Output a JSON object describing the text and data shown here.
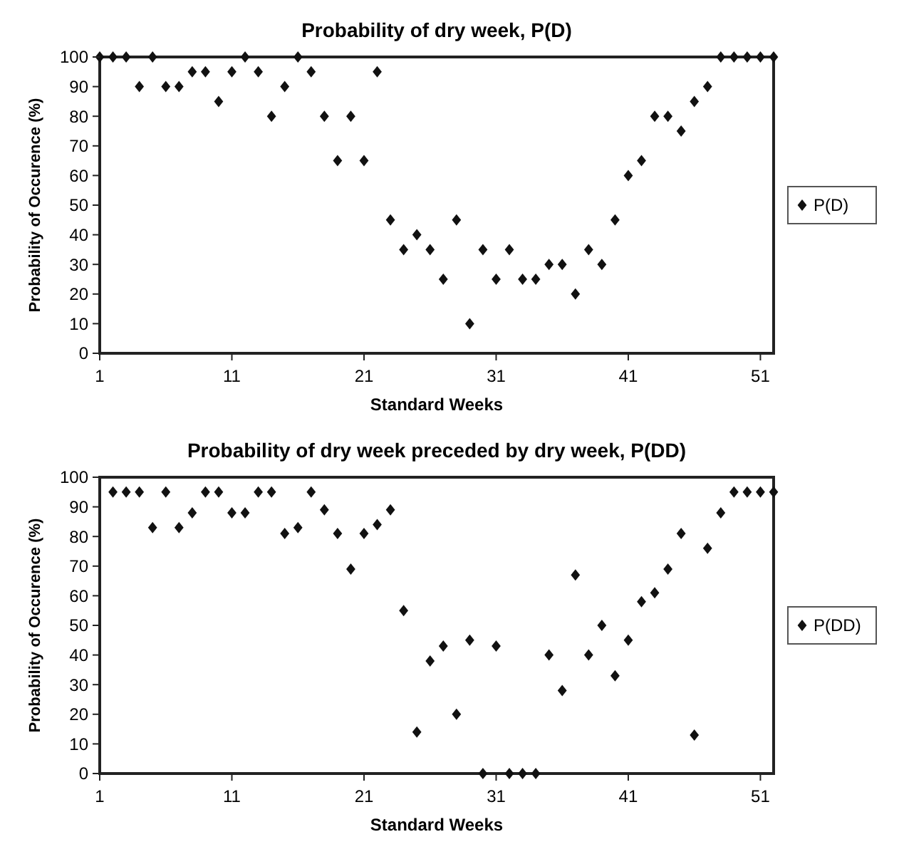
{
  "chart_data": [
    {
      "type": "scatter",
      "title": "Probability of dry week, P(D)",
      "xlabel": "Standard Weeks",
      "ylabel": "Probability of Occurence (%)",
      "xlim": [
        1,
        52
      ],
      "xticks": [
        1,
        11,
        21,
        31,
        41,
        51
      ],
      "ylim": [
        0,
        100
      ],
      "yticks": [
        0,
        10,
        20,
        30,
        40,
        50,
        60,
        70,
        80,
        90,
        100
      ],
      "grid": false,
      "legend": "right",
      "marker": "diamond",
      "x": [
        1,
        2,
        3,
        4,
        5,
        6,
        7,
        8,
        9,
        10,
        11,
        12,
        13,
        14,
        15,
        16,
        17,
        18,
        19,
        20,
        21,
        22,
        23,
        24,
        25,
        26,
        27,
        28,
        29,
        30,
        31,
        32,
        33,
        34,
        35,
        36,
        37,
        38,
        39,
        40,
        41,
        42,
        43,
        44,
        45,
        46,
        47,
        48,
        49,
        50,
        51,
        52
      ],
      "series": [
        {
          "name": "P(D)",
          "color": "#111111",
          "values": [
            100,
            100,
            100,
            90,
            100,
            90,
            90,
            95,
            95,
            85,
            95,
            100,
            95,
            80,
            90,
            100,
            95,
            80,
            65,
            80,
            65,
            95,
            45,
            35,
            40,
            35,
            25,
            45,
            10,
            35,
            25,
            35,
            25,
            25,
            30,
            30,
            20,
            35,
            30,
            45,
            60,
            65,
            80,
            80,
            75,
            85,
            90,
            100,
            100,
            100,
            100,
            100
          ]
        }
      ]
    },
    {
      "type": "scatter",
      "title": "Probability of dry week preceded by dry week, P(DD)",
      "xlabel": "Standard Weeks",
      "ylabel": "Probability of Occurence (%)",
      "xlim": [
        1,
        52
      ],
      "xticks": [
        1,
        11,
        21,
        31,
        41,
        51
      ],
      "ylim": [
        0,
        100
      ],
      "yticks": [
        0,
        10,
        20,
        30,
        40,
        50,
        60,
        70,
        80,
        90,
        100
      ],
      "grid": false,
      "legend": "right",
      "marker": "diamond",
      "series": [
        {
          "name": "P(DD)",
          "color": "#111111",
          "x": [
            2,
            3,
            4,
            5,
            6,
            7,
            8,
            9,
            10,
            11,
            12,
            13,
            14,
            15,
            16,
            17,
            18,
            19,
            20,
            21,
            22,
            23,
            24,
            25,
            26,
            27,
            28,
            29,
            30,
            31,
            32,
            33,
            34,
            35,
            36,
            37,
            38,
            39,
            40,
            41,
            42,
            43,
            44,
            45,
            46,
            47,
            48,
            49,
            50,
            51,
            52
          ],
          "values": [
            95,
            95,
            95,
            83,
            95,
            83,
            88,
            95,
            95,
            88,
            88,
            95,
            95,
            81,
            83,
            95,
            89,
            81,
            69,
            81,
            84,
            89,
            55,
            14,
            38,
            43,
            20,
            45,
            0,
            43,
            0,
            0,
            0,
            40,
            28,
            67,
            40,
            50,
            33,
            45,
            58,
            61,
            69,
            81,
            13,
            76,
            88,
            95,
            95,
            95,
            95
          ]
        }
      ]
    }
  ]
}
